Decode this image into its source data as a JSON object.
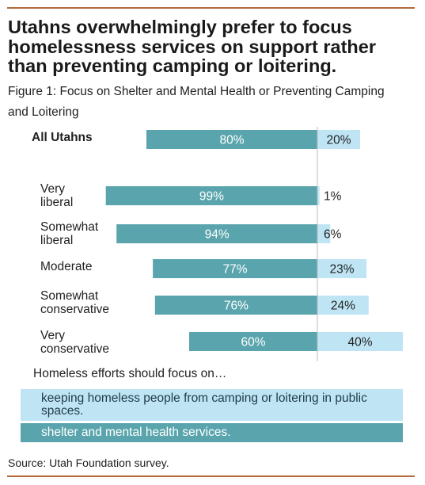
{
  "headline": "Utahns overwhelmingly prefer to focus homelessness services on support rather than preventing camping or loitering.",
  "subtitle": "Figure 1: Focus on Shelter and Mental Health or Preventing Camping and Loitering",
  "colors": {
    "rule": "#b26a3c",
    "shelter": "#5aa5ad",
    "camping": "#bfe5f5",
    "divider": "#bbbbbb"
  },
  "chart_data": {
    "type": "bar",
    "orientation": "horizontal-diverging",
    "categories": [
      "All Utahns",
      "Very liberal",
      "Somewhat liberal",
      "Moderate",
      "Somewhat conservative",
      "Very conservative"
    ],
    "series": [
      {
        "name": "shelter and mental health services.",
        "values": [
          80,
          99,
          94,
          77,
          76,
          60
        ],
        "labels": [
          "80%",
          "99%",
          "94%",
          "77%",
          "76%",
          "60%"
        ]
      },
      {
        "name": "keeping homeless people from camping or loitering in public spaces.",
        "values": [
          20,
          1,
          6,
          23,
          24,
          40
        ],
        "labels": [
          "20%",
          "1%",
          "6%",
          "23%",
          "24%",
          "40%"
        ]
      }
    ]
  },
  "category_lines": [
    [
      "All Utahns"
    ],
    [
      "Very",
      "liberal"
    ],
    [
      "Somewhat",
      "liberal"
    ],
    [
      "Moderate"
    ],
    [
      "Somewhat",
      "conservative"
    ],
    [
      "Very",
      "conservative"
    ]
  ],
  "legend": {
    "title": "Homeless efforts should focus on…",
    "camping_label": "keeping homeless people from camping or loitering in public spaces.",
    "shelter_label": "shelter and mental health services."
  },
  "source": "Source: Utah Foundation survey."
}
